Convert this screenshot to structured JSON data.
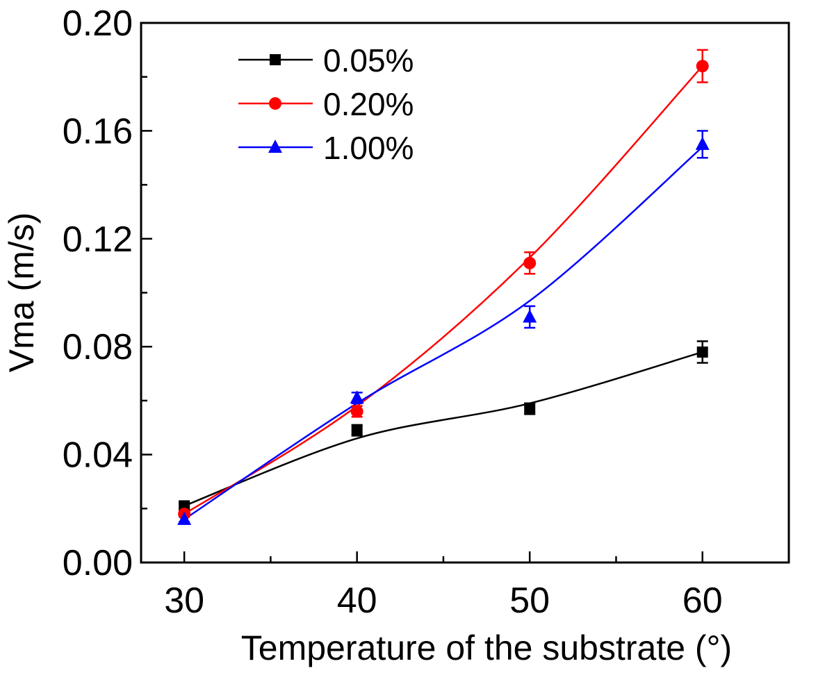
{
  "chart_data": {
    "type": "line",
    "title": "",
    "xlabel": "Temperature of the substrate (°)",
    "ylabel": "Vma (m/s)",
    "xlim": [
      27.5,
      65
    ],
    "ylim": [
      0,
      0.2
    ],
    "x_ticks": [
      30,
      40,
      50,
      60
    ],
    "x_tick_labels": [
      "30",
      "40",
      "50",
      "60"
    ],
    "x_minor_ticks": [
      35,
      45,
      55
    ],
    "y_ticks": [
      0,
      0.04,
      0.08,
      0.12,
      0.16,
      0.2
    ],
    "y_tick_labels": [
      "0.00",
      "0.04",
      "0.08",
      "0.12",
      "0.16",
      "0.20"
    ],
    "y_minor_ticks": [
      0.02,
      0.06,
      0.1,
      0.14,
      0.18
    ],
    "grid": false,
    "legend_position": "top-left",
    "x": [
      30,
      40,
      50,
      60
    ],
    "series": [
      {
        "name": "0.05%",
        "color": "#000000",
        "marker": "square",
        "values": [
          0.021,
          0.049,
          0.057,
          0.078
        ],
        "errors": [
          0.001,
          0.002,
          0.002,
          0.004
        ],
        "fit": [
          0.021,
          0.046,
          0.059,
          0.078
        ]
      },
      {
        "name": "0.20%",
        "color": "#ff0000",
        "marker": "circle",
        "values": [
          0.018,
          0.056,
          0.111,
          0.184
        ],
        "errors": [
          0.001,
          0.002,
          0.004,
          0.006
        ],
        "fit": [
          0.018,
          0.058,
          0.113,
          0.184
        ]
      },
      {
        "name": "1.00%",
        "color": "#0000ff",
        "marker": "triangle",
        "values": [
          0.016,
          0.061,
          0.091,
          0.155
        ],
        "errors": [
          0.001,
          0.002,
          0.004,
          0.005
        ],
        "fit": [
          0.016,
          0.059,
          0.097,
          0.154
        ]
      }
    ]
  }
}
